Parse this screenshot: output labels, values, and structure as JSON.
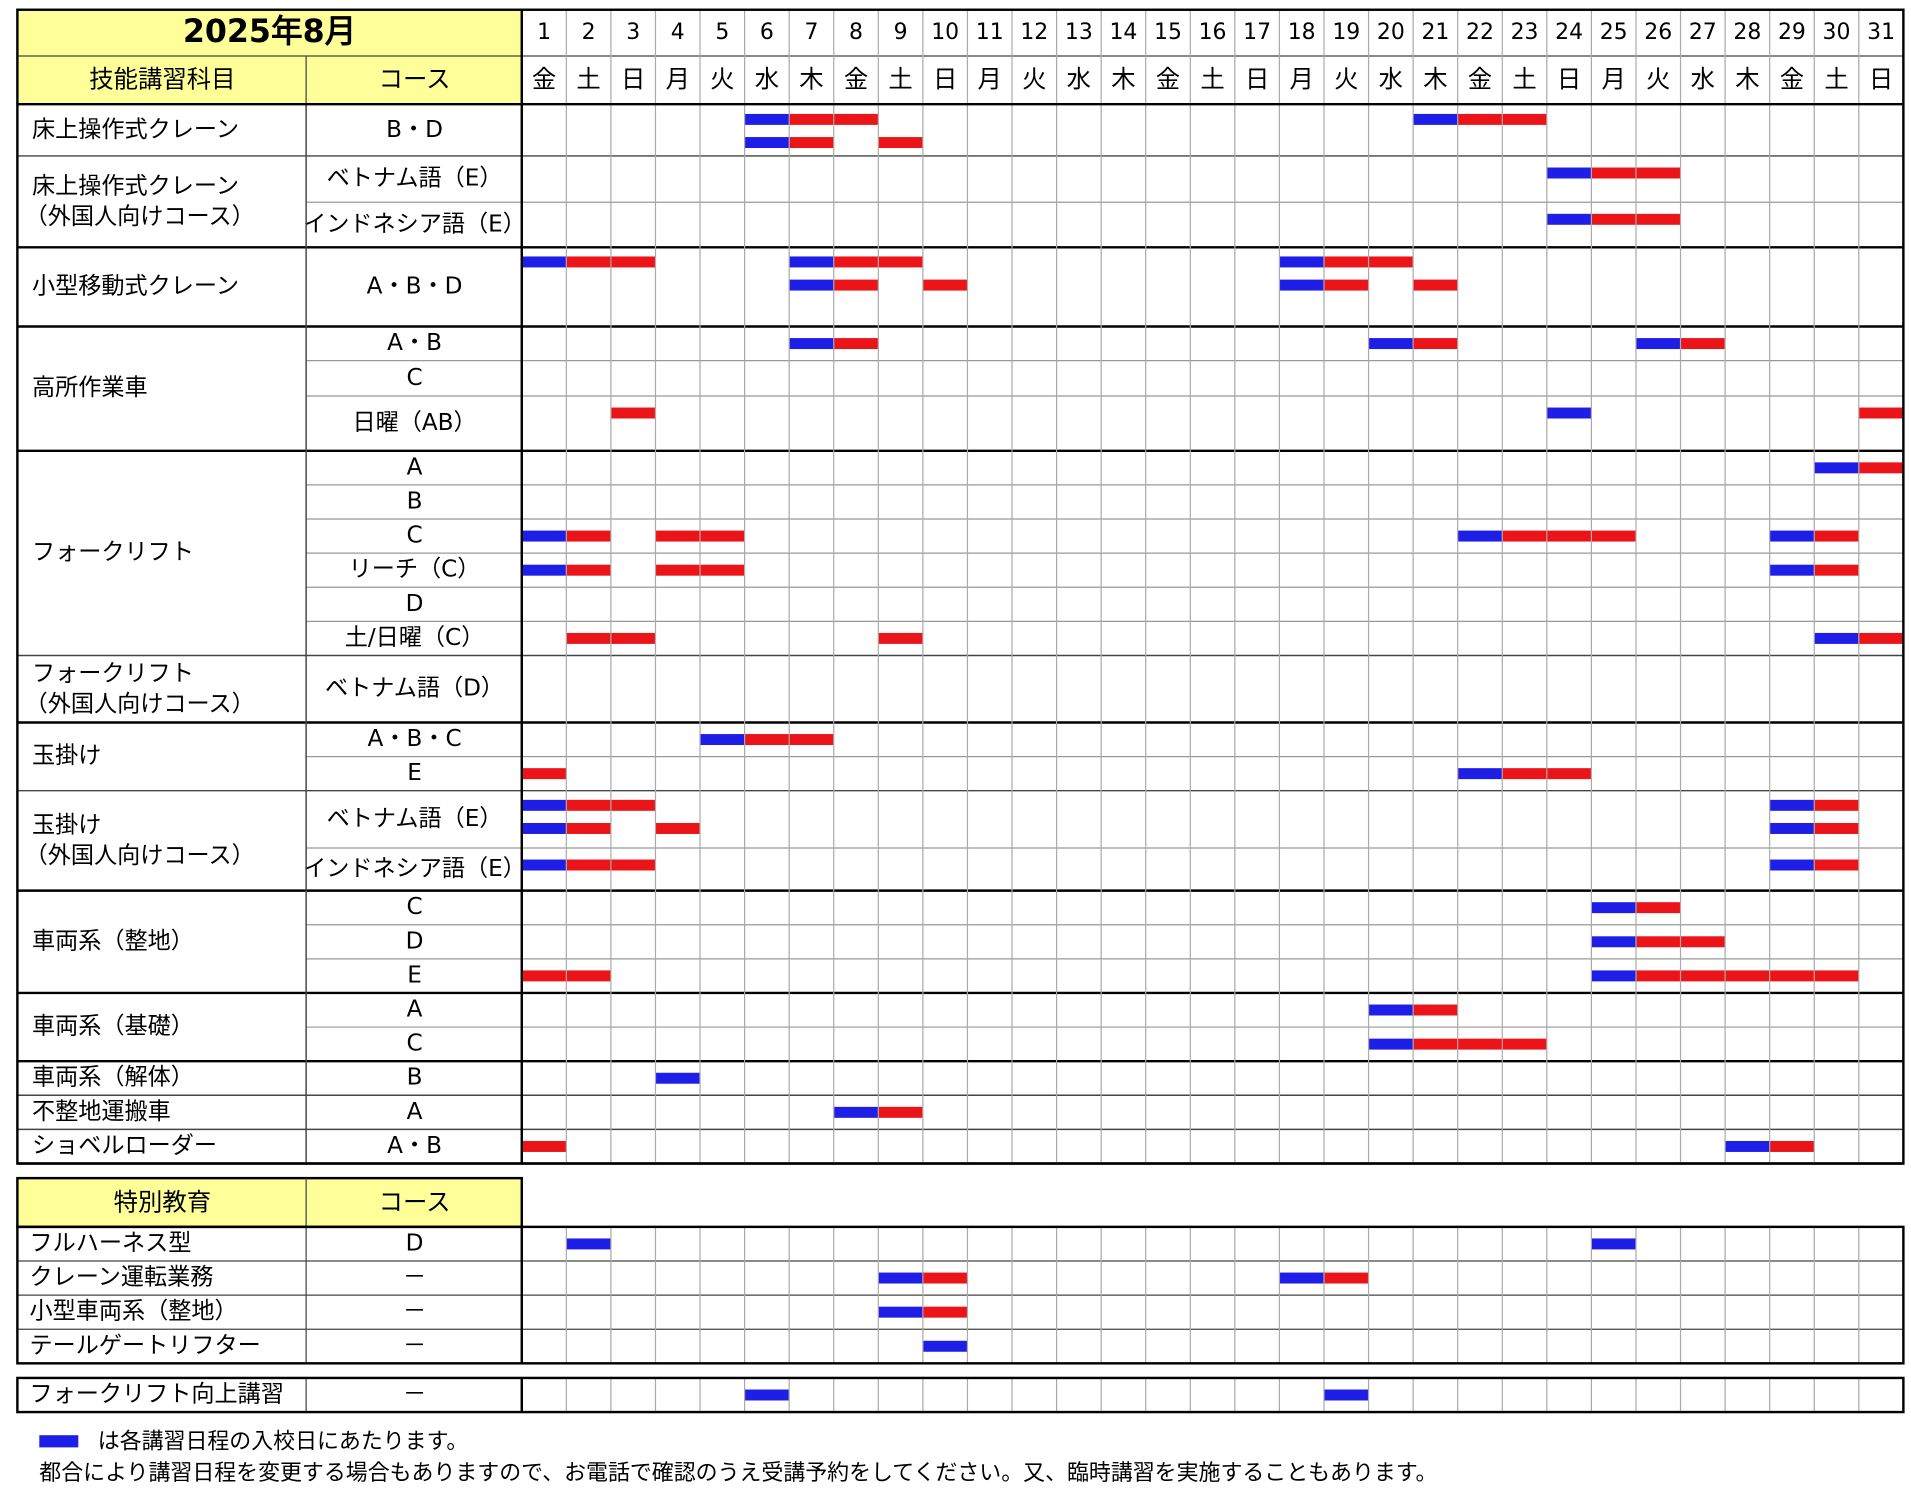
{
  "header": {
    "title": "2025年8月",
    "subject_label": "技能講習科目",
    "course_label": "コース"
  },
  "calendar": {
    "days": [
      1,
      2,
      3,
      4,
      5,
      6,
      7,
      8,
      9,
      10,
      11,
      12,
      13,
      14,
      15,
      16,
      17,
      18,
      19,
      20,
      21,
      22,
      23,
      24,
      25,
      26,
      27,
      28,
      29,
      30,
      31
    ],
    "weekdays": [
      "金",
      "土",
      "日",
      "月",
      "火",
      "水",
      "木",
      "金",
      "土",
      "日",
      "月",
      "火",
      "水",
      "木",
      "金",
      "土",
      "日",
      "月",
      "火",
      "水",
      "木",
      "金",
      "土",
      "日",
      "月",
      "火",
      "水",
      "木",
      "金",
      "土",
      "日"
    ],
    "day_kinds": [
      "weekday",
      "saturday",
      "holiday",
      "weekday",
      "weekday",
      "weekday",
      "weekday",
      "weekday",
      "saturday",
      "holiday",
      "holiday",
      "weekday",
      "weekday",
      "weekday",
      "weekday",
      "saturday",
      "holiday",
      "weekday",
      "weekday",
      "weekday",
      "weekday",
      "weekday",
      "saturday",
      "holiday",
      "weekday",
      "weekday",
      "weekday",
      "weekday",
      "weekday",
      "saturday",
      "holiday"
    ],
    "colors": {
      "weekday": "#000000",
      "saturday": "#1414b4",
      "holiday": "#dc1414",
      "entry": "#1e1ee6",
      "course": "#ea1419",
      "label_fill": "#ffff99"
    }
  },
  "groups": [
    {
      "subjects": [
        {
          "name": [
            "床上操作式クレーン"
          ],
          "courses": [
            {
              "name": "B・D",
              "lines": [
                {
                  "entry": [
                    6,
                    21
                  ],
                  "course": [
                    7,
                    8,
                    22,
                    23
                  ]
                },
                {
                  "entry": [
                    6
                  ],
                  "course": [
                    7,
                    9
                  ]
                }
              ]
            }
          ]
        },
        {
          "name": [
            "床上操作式クレーン",
            "（外国人向けコース）"
          ],
          "courses": [
            {
              "name": "ベトナム語（E）",
              "lines": [
                {
                  "entry": [
                    24
                  ],
                  "course": [
                    25,
                    26
                  ]
                }
              ]
            },
            {
              "name": "インドネシア語（E）",
              "lines": [
                {
                  "entry": [
                    24
                  ],
                  "course": [
                    25,
                    26
                  ]
                }
              ]
            }
          ]
        }
      ]
    },
    {
      "subjects": [
        {
          "name": [
            "小型移動式クレーン"
          ],
          "courses": [
            {
              "name": "A・B・D",
              "lines": [
                {
                  "entry": [
                    1,
                    7,
                    18
                  ],
                  "course": [
                    2,
                    3,
                    8,
                    9,
                    19,
                    20
                  ]
                },
                {
                  "entry": [
                    7,
                    18
                  ],
                  "course": [
                    8,
                    10,
                    19,
                    21
                  ]
                }
              ]
            }
          ]
        }
      ]
    },
    {
      "subjects": [
        {
          "name": [
            "高所作業車"
          ],
          "courses": [
            {
              "name": "A・B",
              "lines": [
                {
                  "entry": [
                    7,
                    20,
                    26
                  ],
                  "course": [
                    8,
                    21,
                    27
                  ]
                }
              ]
            },
            {
              "name": "C",
              "lines": [
                {
                  "entry": [],
                  "course": []
                }
              ]
            },
            {
              "name": "日曜（AB）",
              "lines": [
                {
                  "entry": [
                    24
                  ],
                  "course": [
                    3,
                    31
                  ]
                }
              ]
            }
          ]
        }
      ]
    },
    {
      "subjects": [
        {
          "name": [
            "フォークリフト"
          ],
          "courses": [
            {
              "name": "A",
              "lines": [
                {
                  "entry": [
                    30
                  ],
                  "course": [
                    31
                  ]
                }
              ]
            },
            {
              "name": "B",
              "lines": [
                {
                  "entry": [],
                  "course": []
                }
              ]
            },
            {
              "name": "C",
              "lines": [
                {
                  "entry": [
                    1,
                    22,
                    29
                  ],
                  "course": [
                    2,
                    4,
                    5,
                    23,
                    24,
                    25,
                    30
                  ]
                }
              ]
            },
            {
              "name": "リーチ（C）",
              "lines": [
                {
                  "entry": [
                    1,
                    29
                  ],
                  "course": [
                    2,
                    4,
                    5,
                    30
                  ]
                }
              ]
            },
            {
              "name": "D",
              "lines": [
                {
                  "entry": [],
                  "course": []
                }
              ]
            },
            {
              "name": "土/日曜（C）",
              "lines": [
                {
                  "entry": [
                    30
                  ],
                  "course": [
                    2,
                    3,
                    9,
                    31
                  ]
                }
              ]
            }
          ]
        },
        {
          "name": [
            "フォークリフト",
            "（外国人向けコース）"
          ],
          "courses": [
            {
              "name": "ベトナム語（D）",
              "lines": [
                {
                  "entry": [],
                  "course": []
                }
              ]
            }
          ]
        }
      ]
    },
    {
      "subjects": [
        {
          "name": [
            "玉掛け"
          ],
          "courses": [
            {
              "name": "A・B・C",
              "lines": [
                {
                  "entry": [
                    5
                  ],
                  "course": [
                    6,
                    7
                  ]
                }
              ]
            },
            {
              "name": "E",
              "lines": [
                {
                  "entry": [
                    22
                  ],
                  "course": [
                    1,
                    23,
                    24
                  ]
                }
              ]
            }
          ]
        },
        {
          "name": [
            "玉掛け",
            "（外国人向けコース）"
          ],
          "courses": [
            {
              "name": "ベトナム語（E）",
              "lines": [
                {
                  "entry": [
                    1,
                    29
                  ],
                  "course": [
                    2,
                    3,
                    30
                  ]
                },
                {
                  "entry": [
                    1,
                    29
                  ],
                  "course": [
                    2,
                    4,
                    30
                  ]
                }
              ]
            },
            {
              "name": "インドネシア語（E）",
              "lines": [
                {
                  "entry": [
                    1,
                    29
                  ],
                  "course": [
                    2,
                    3,
                    30
                  ]
                }
              ]
            }
          ]
        }
      ]
    },
    {
      "subjects": [
        {
          "name": [
            "車両系（整地）"
          ],
          "courses": [
            {
              "name": "C",
              "lines": [
                {
                  "entry": [
                    25
                  ],
                  "course": [
                    26
                  ]
                }
              ]
            },
            {
              "name": "D",
              "lines": [
                {
                  "entry": [
                    25
                  ],
                  "course": [
                    26,
                    27
                  ]
                }
              ]
            },
            {
              "name": "E",
              "lines": [
                {
                  "entry": [
                    25
                  ],
                  "course": [
                    1,
                    2,
                    26,
                    27,
                    28,
                    29,
                    30
                  ]
                }
              ]
            }
          ]
        }
      ]
    },
    {
      "subjects": [
        {
          "name": [
            "車両系（基礎）"
          ],
          "courses": [
            {
              "name": "A",
              "lines": [
                {
                  "entry": [
                    20
                  ],
                  "course": [
                    21
                  ]
                }
              ]
            },
            {
              "name": "C",
              "lines": [
                {
                  "entry": [
                    20
                  ],
                  "course": [
                    21,
                    22,
                    23
                  ]
                }
              ]
            }
          ]
        }
      ]
    },
    {
      "subjects": [
        {
          "name": [
            "車両系（解体）"
          ],
          "courses": [
            {
              "name": "B",
              "lines": [
                {
                  "entry": [
                    4
                  ],
                  "course": []
                }
              ]
            }
          ]
        },
        {
          "name": [
            "不整地運搬車"
          ],
          "courses": [
            {
              "name": "A",
              "lines": [
                {
                  "entry": [
                    8
                  ],
                  "course": [
                    9
                  ]
                }
              ]
            }
          ]
        },
        {
          "name": [
            "ショベルローダー"
          ],
          "courses": [
            {
              "name": "A・B",
              "lines": [
                {
                  "entry": [
                    28
                  ],
                  "course": [
                    1,
                    29
                  ]
                }
              ]
            }
          ]
        }
      ]
    }
  ],
  "special": {
    "label": "特別教育",
    "course_label": "コース",
    "rows": [
      {
        "name": "フルハーネス型",
        "course": "D",
        "entry": [
          2,
          25
        ],
        "days": []
      },
      {
        "name": "クレーン運転業務",
        "course": "－",
        "entry": [
          9,
          18
        ],
        "days": [
          10,
          19
        ]
      },
      {
        "name": "小型車両系（整地）",
        "course": "－",
        "entry": [
          9
        ],
        "days": [
          10
        ]
      },
      {
        "name": "テールゲートリフター",
        "course": "－",
        "entry": [
          10
        ],
        "days": []
      }
    ]
  },
  "extra": {
    "rows": [
      {
        "name": "フォークリフト向上講習",
        "course": "－",
        "entry": [
          6,
          19
        ],
        "days": []
      }
    ]
  },
  "notes": {
    "legend": "は各講習日程の入校日にあたります。",
    "note": "都合により講習日程を変更する場合もありますので、お電話で確認のうえ受講予約をしてください。又、臨時講習を実施することもあります。"
  }
}
